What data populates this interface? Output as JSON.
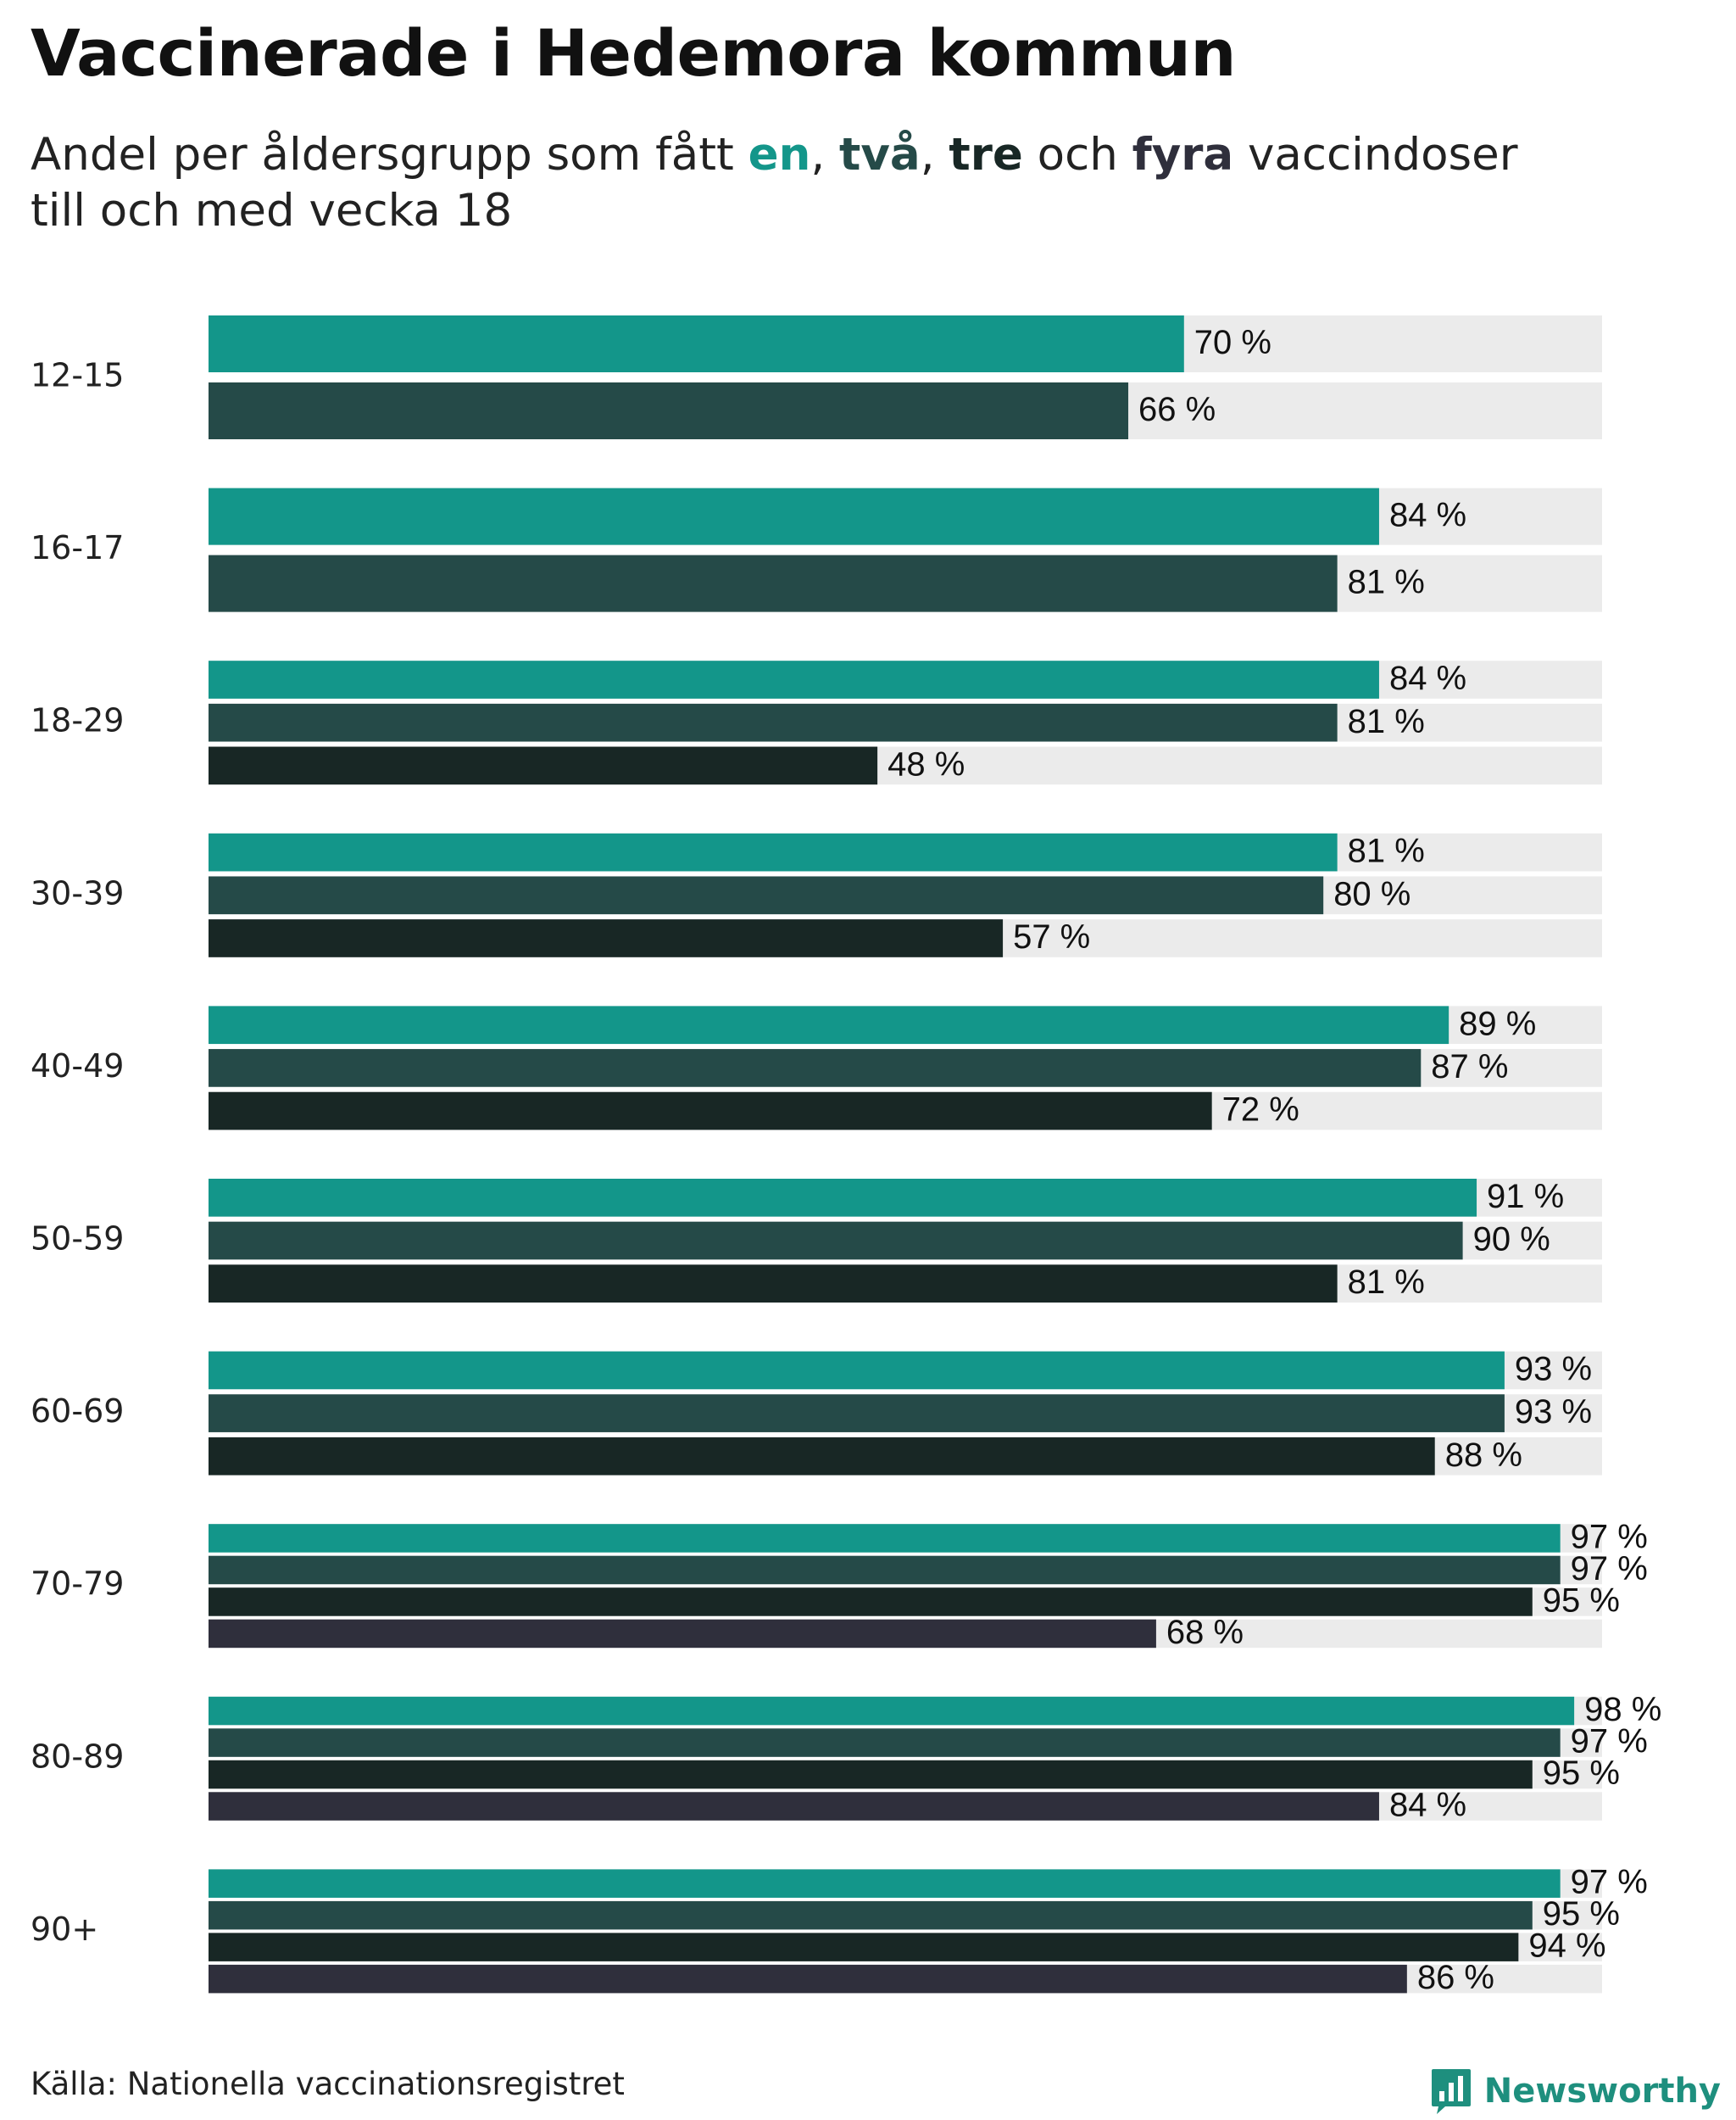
{
  "title": "Vaccinerade i Hedemora kommun",
  "subtitle": {
    "prefix": "Andel per åldersgrupp som fått ",
    "dose1": "en",
    "sep1": ", ",
    "dose2": "två",
    "sep2": ", ",
    "dose3": "tre",
    "middle": " och ",
    "dose4": "fyra",
    "suffix": " vaccindoser",
    "line2": "till och med vecka 18"
  },
  "colors": {
    "dose1": "#13968a",
    "dose2": "#254a48",
    "dose3": "#182725",
    "dose4": "#2f2f3c",
    "track": "#ebebeb"
  },
  "chart_data": {
    "type": "bar",
    "orientation": "horizontal",
    "xlim": [
      0,
      100
    ],
    "value_suffix": " %",
    "series_names": [
      "en",
      "två",
      "tre",
      "fyra"
    ],
    "groups": [
      {
        "label": "12-15",
        "values": [
          70,
          66
        ]
      },
      {
        "label": "16-17",
        "values": [
          84,
          81
        ]
      },
      {
        "label": "18-29",
        "values": [
          84,
          81,
          48
        ]
      },
      {
        "label": "30-39",
        "values": [
          81,
          80,
          57
        ]
      },
      {
        "label": "40-49",
        "values": [
          89,
          87,
          72
        ]
      },
      {
        "label": "50-59",
        "values": [
          91,
          90,
          81
        ]
      },
      {
        "label": "60-69",
        "values": [
          93,
          93,
          88
        ]
      },
      {
        "label": "70-79",
        "values": [
          97,
          97,
          95,
          68
        ]
      },
      {
        "label": "80-89",
        "values": [
          98,
          97,
          95,
          84
        ]
      },
      {
        "label": "90+",
        "values": [
          97,
          95,
          94,
          86
        ]
      }
    ]
  },
  "footer": {
    "source": "Källa: Nationella vaccinationsregistret",
    "brand": "Newsworthy"
  }
}
